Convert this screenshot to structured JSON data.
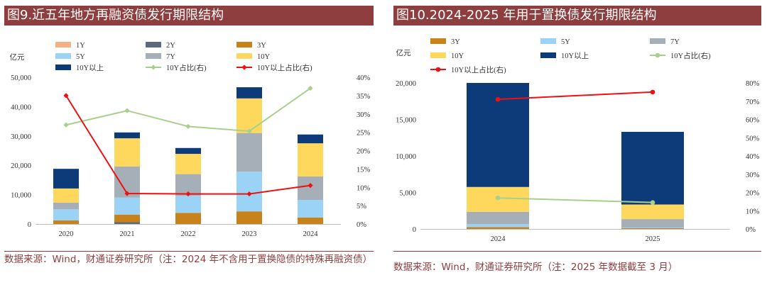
{
  "left_panel": {
    "title": "图9.近五年地方再融资债发行期限结构",
    "source": "数据来源：Wind，财通证券研究所（注：2024 年不含用于置换隐债的特殊再融资债）"
  },
  "right_panel": {
    "title": "图10.2024-2025 年用于置换债发行期限结构",
    "source": "数据来源：Wind，财通证券研究所（注：2025 年数据截至 3 月）"
  },
  "chart_data": [
    {
      "type": "bar",
      "stacked": true,
      "unit_label": "亿元",
      "categories": [
        "2020",
        "2021",
        "2022",
        "2023",
        "2024"
      ],
      "ylim": [
        0,
        50000
      ],
      "yticks": [
        "0",
        "10,000",
        "20,000",
        "30,000",
        "40,000",
        "50,000"
      ],
      "y2lim": [
        0,
        40
      ],
      "y2ticks": [
        "0%",
        "5%",
        "10%",
        "15%",
        "20%",
        "25%",
        "30%",
        "35%",
        "40%"
      ],
      "series": [
        {
          "name": "1Y",
          "color": "#f4b183",
          "values": [
            0,
            0,
            0,
            0,
            0
          ]
        },
        {
          "name": "2Y",
          "color": "#5b6b7d",
          "values": [
            0,
            600,
            0,
            0,
            0
          ]
        },
        {
          "name": "3Y",
          "color": "#c9821a",
          "values": [
            1200,
            2600,
            3800,
            4300,
            2200
          ]
        },
        {
          "name": "5Y",
          "color": "#9ad3f5",
          "values": [
            3800,
            5800,
            5800,
            13500,
            6000
          ]
        },
        {
          "name": "7Y",
          "color": "#a6aeb8",
          "values": [
            2300,
            10600,
            7400,
            13200,
            8000
          ]
        },
        {
          "name": "10Y",
          "color": "#fdd85c",
          "values": [
            4800,
            9600,
            6900,
            11800,
            11300
          ]
        },
        {
          "name": "10Y以上",
          "color": "#0d3a78",
          "values": [
            6700,
            2000,
            2000,
            3800,
            3000
          ]
        }
      ],
      "lines": [
        {
          "name": "10Y占比(右)",
          "color": "#a8d08d",
          "marker": "diamond",
          "values": [
            27.0,
            30.9,
            26.6,
            25.3,
            37.0
          ]
        },
        {
          "name": "10Y以上占比(右)",
          "color": "#ee1111",
          "marker": "diamond",
          "values": [
            35.0,
            8.3,
            8.2,
            8.2,
            10.5
          ]
        }
      ],
      "legend_order": [
        "1Y",
        "2Y",
        "3Y",
        "5Y",
        "7Y",
        "10Y",
        "10Y以上",
        "10Y占比(右)",
        "10Y以上占比(右)"
      ]
    },
    {
      "type": "bar",
      "stacked": true,
      "unit_label": "亿元",
      "categories": [
        "2024",
        "2025"
      ],
      "ylim": [
        0,
        20000
      ],
      "yticks": [
        "0",
        "5,000",
        "10,000",
        "15,000",
        "20,000"
      ],
      "y2lim": [
        0,
        80
      ],
      "y2ticks": [
        "0%",
        "10%",
        "20%",
        "30%",
        "40%",
        "50%",
        "60%",
        "70%",
        "80%"
      ],
      "series": [
        {
          "name": "3Y",
          "color": "#c9821a",
          "values": [
            250,
            100
          ]
        },
        {
          "name": "5Y",
          "color": "#9ad3f5",
          "values": [
            400,
            100
          ]
        },
        {
          "name": "7Y",
          "color": "#a6aeb8",
          "values": [
            1700,
            1150
          ]
        },
        {
          "name": "10Y",
          "color": "#fdd85c",
          "values": [
            3400,
            2000
          ]
        },
        {
          "name": "10Y以上",
          "color": "#0d3a78",
          "values": [
            14250,
            9950
          ]
        }
      ],
      "lines": [
        {
          "name": "10Y占比(右)",
          "color": "#a8d08d",
          "marker": "circle",
          "values": [
            17.0,
            14.5
          ]
        },
        {
          "name": "10Y以上占比(右)",
          "color": "#ee1111",
          "marker": "circle",
          "values": [
            71.0,
            75.0
          ]
        }
      ],
      "legend_order": [
        "3Y",
        "5Y",
        "7Y",
        "10Y",
        "10Y以上",
        "10Y占比(右)",
        "10Y以上占比(右)"
      ]
    }
  ]
}
